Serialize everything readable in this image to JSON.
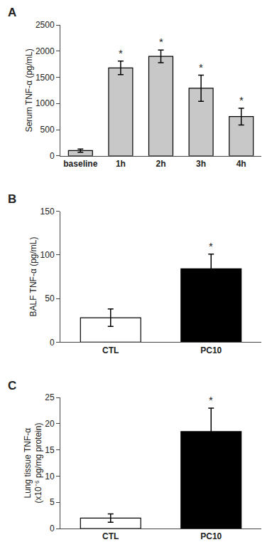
{
  "chart_data": [
    {
      "type": "bar",
      "title": "A",
      "categories": [
        "baseline",
        "1h",
        "2h",
        "3h",
        "4h"
      ],
      "values": [
        100,
        1680,
        1900,
        1290,
        750
      ],
      "errors": [
        30,
        130,
        120,
        250,
        160
      ],
      "color": "#c8c8c8",
      "ylabel": "Serum TNF-α (pg/mL)",
      "ylim": [
        0,
        2500
      ],
      "yticks": [
        0,
        500,
        1000,
        1500,
        2000,
        2500
      ],
      "grid": false,
      "annotations": [
        {
          "x": "1h",
          "text": "*"
        },
        {
          "x": "2h",
          "text": "*"
        },
        {
          "x": "3h",
          "text": "*"
        },
        {
          "x": "4h",
          "text": "*"
        }
      ]
    },
    {
      "type": "bar",
      "title": "B",
      "categories": [
        "CTL",
        "PC10"
      ],
      "values": [
        28,
        84
      ],
      "errors": [
        10,
        17
      ],
      "colors": [
        "#ffffff",
        "#000000"
      ],
      "ylabel": "BALF TNF-α (pg/mL)",
      "ylim": [
        0,
        150
      ],
      "yticks": [
        0,
        50,
        100,
        150
      ],
      "grid": false,
      "annotations": [
        {
          "x": "PC10",
          "text": "*"
        }
      ]
    },
    {
      "type": "bar",
      "title": "C",
      "categories": [
        "CTL",
        "PC10"
      ],
      "values": [
        2.0,
        18.5
      ],
      "errors": [
        0.8,
        4.5
      ],
      "colors": [
        "#ffffff",
        "#000000"
      ],
      "ylabel": "Lung tissue TNF-α\n(x10⁻⁶ pg/mg protein)",
      "ylim": [
        0,
        25
      ],
      "yticks": [
        0,
        5,
        10,
        15,
        20,
        25
      ],
      "grid": false,
      "annotations": [
        {
          "x": "PC10",
          "text": "*"
        }
      ]
    }
  ]
}
